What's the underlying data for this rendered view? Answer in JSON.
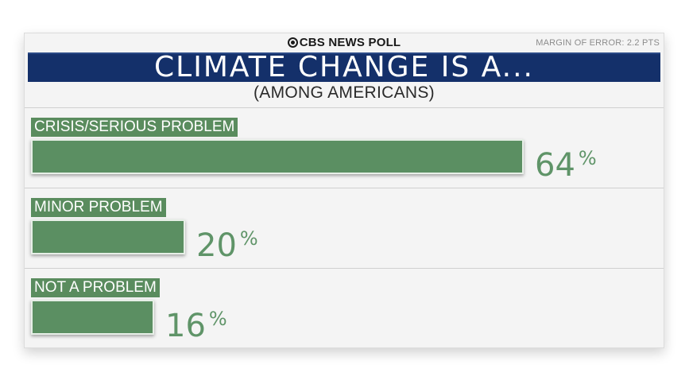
{
  "header": {
    "brand": "CBS NEWS POLL",
    "margin_of_error": "MARGIN OF ERROR: 2.2 PTS",
    "title": "CLIMATE CHANGE IS A...",
    "subtitle": "(AMONG AMERICANS)"
  },
  "colors": {
    "title_bar": "#14306a",
    "bar": "#5b8f62",
    "value_text": "#5f9468"
  },
  "chart_data": {
    "type": "bar",
    "orientation": "horizontal",
    "title": "CLIMATE CHANGE IS A...",
    "subtitle": "(AMONG AMERICANS)",
    "categories": [
      "CRISIS/SERIOUS PROBLEM",
      "MINOR PROBLEM",
      "NOT A PROBLEM"
    ],
    "values": [
      64,
      20,
      16
    ],
    "value_labels": [
      "64",
      "20",
      "16"
    ],
    "unit": "%",
    "xlim": [
      0,
      100
    ],
    "grid": false,
    "legend": "none"
  }
}
